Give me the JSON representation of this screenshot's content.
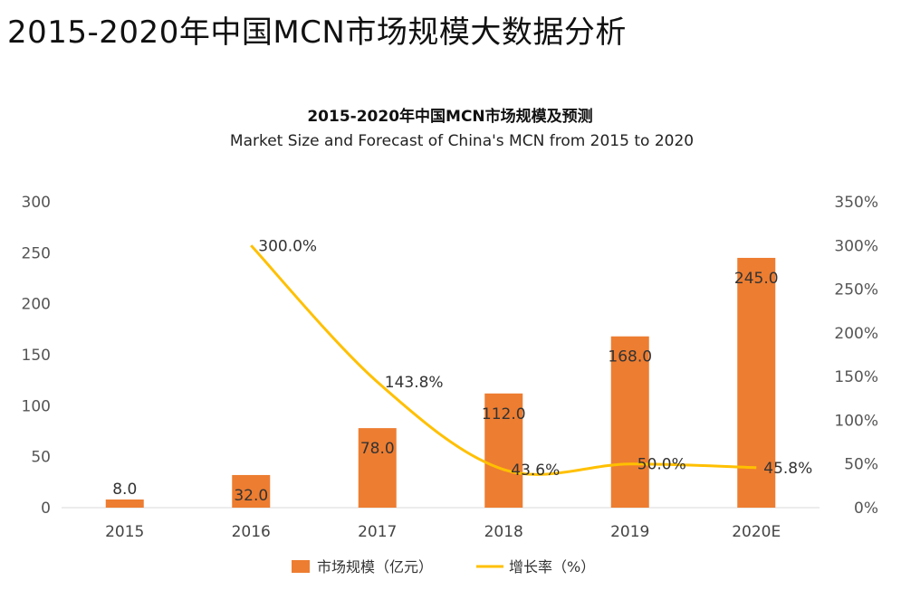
{
  "page": {
    "title": "2015-2020年中国MCN市场规模大数据分析"
  },
  "chart_data": {
    "type": "bar",
    "title": "2015-2020年中国MCN市场规模及预测",
    "subtitle": "Market Size and Forecast of China's MCN from 2015 to 2020",
    "categories": [
      "2015",
      "2016",
      "2017",
      "2018",
      "2019",
      "2020E"
    ],
    "series": [
      {
        "name": "市场规模（亿元）",
        "type": "bar",
        "axis": "left",
        "values": [
          8.0,
          32.0,
          78.0,
          112.0,
          168.0,
          245.0
        ],
        "labels": [
          "8.0",
          "32.0",
          "78.0",
          "112.0",
          "168.0",
          "245.0"
        ],
        "color": "#ED7D31"
      },
      {
        "name": "增长率（%）",
        "type": "line",
        "axis": "right",
        "values": [
          null,
          300.0,
          143.8,
          43.6,
          50.0,
          45.8
        ],
        "labels": [
          null,
          "300.0%",
          "143.8%",
          "43.6%",
          "50.0%",
          "45.8%"
        ],
        "color": "#FFC000"
      }
    ],
    "y_left": {
      "min": 0,
      "max": 300,
      "ticks": [
        "0",
        "50",
        "100",
        "150",
        "200",
        "250",
        "300"
      ]
    },
    "y_right": {
      "min": 0,
      "max": 350,
      "ticks": [
        "0%",
        "50%",
        "100%",
        "150%",
        "200%",
        "250%",
        "300%",
        "350%"
      ]
    },
    "grid": false,
    "legend_position": "bottom"
  }
}
